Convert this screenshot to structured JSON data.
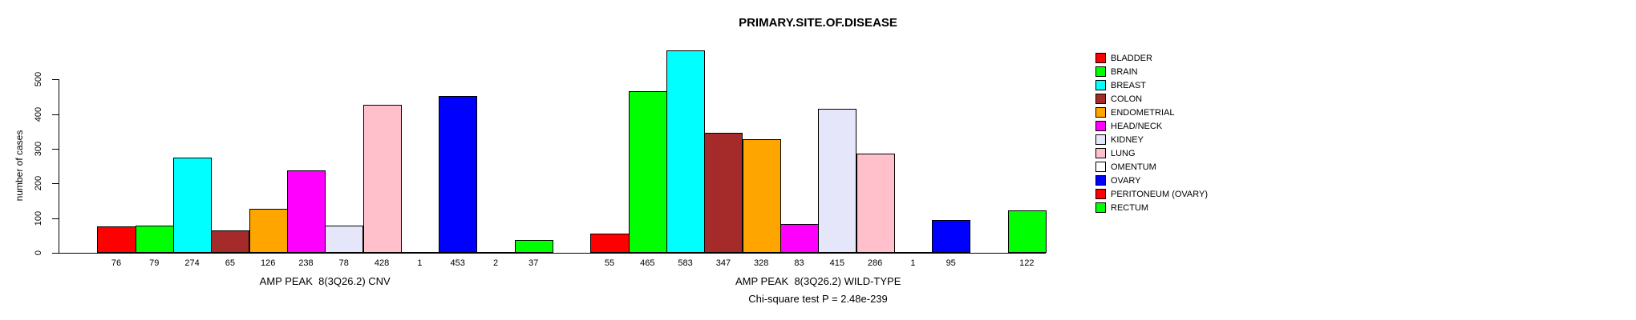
{
  "chart_data": {
    "type": "bar",
    "title": "PRIMARY.SITE.OF.DISEASE",
    "ylabel": "number of cases",
    "xlabel": "",
    "ylim": [
      0,
      600
    ],
    "yticks": [
      0,
      100,
      200,
      300,
      400,
      500
    ],
    "grid": false,
    "legend_position": "right",
    "categories": [
      "BLADDER",
      "BRAIN",
      "BREAST",
      "COLON",
      "ENDOMETRIAL",
      "HEAD/NECK",
      "KIDNEY",
      "LUNG",
      "OMENTUM",
      "OVARY",
      "PERITONEUM (OVARY)",
      "RECTUM"
    ],
    "colors": [
      "#ff0000",
      "#00ff00",
      "#00ffff",
      "#a52a2a",
      "#ffa500",
      "#ff00ff",
      "#e6e6fa",
      "#ffc0cb",
      "#ffffff",
      "#0000ff",
      "#ff0000",
      "#00ff00"
    ],
    "groups": [
      {
        "label": "AMP PEAK  8(3Q26.2) CNV",
        "values": [
          76,
          79,
          274,
          65,
          126,
          238,
          78,
          428,
          1,
          453,
          2,
          37
        ]
      },
      {
        "label": "AMP PEAK  8(3Q26.2) WILD-TYPE",
        "values": [
          55,
          465,
          583,
          347,
          328,
          83,
          415,
          286,
          1,
          95,
          null,
          122
        ]
      }
    ],
    "annotation": "Chi-square test P = 2.48e-239"
  }
}
